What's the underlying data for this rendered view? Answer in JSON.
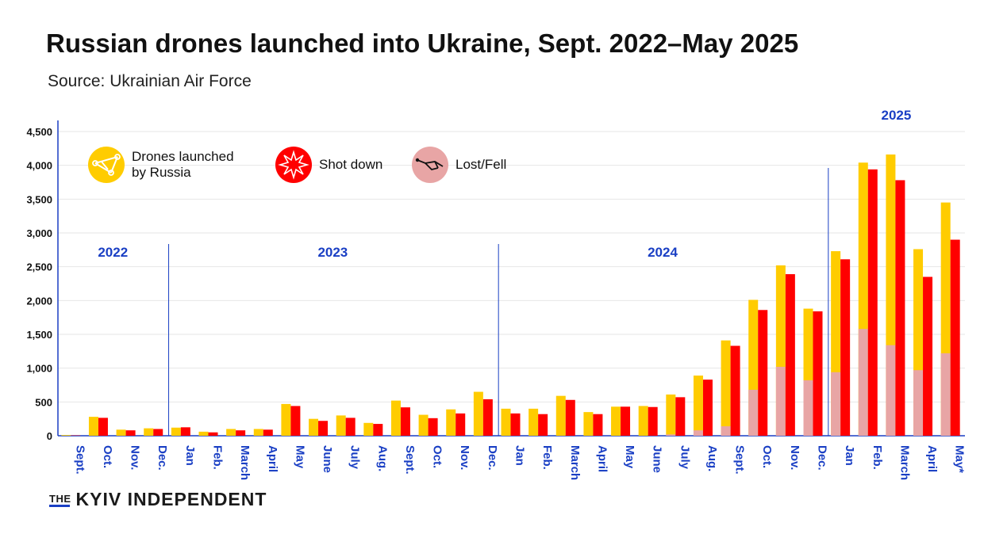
{
  "header": {
    "title": "Russian drones launched into Ukraine, Sept. 2022–May 2025",
    "subtitle": "Source: Ukrainian Air Force"
  },
  "brand": {
    "the": "THE",
    "name": "KYIV INDEPENDENT"
  },
  "legend": {
    "launched": "Drones launched by Russia",
    "launched_line1": "Drones launched",
    "launched_line2": "by Russia",
    "shot": "Shot down",
    "lost": "Lost/Fell"
  },
  "colors": {
    "launched": "#FFCC00",
    "shot_down": "#FF0000",
    "lost": "#E8A5A5",
    "axis": "#1a3fc4",
    "tick_text": "#111111",
    "grid": "#e6e6e6"
  },
  "chart_data": {
    "type": "bar",
    "ylim": [
      0,
      4500
    ],
    "yticks": [
      "0",
      "500",
      "1,000",
      "1,500",
      "2,000",
      "2,500",
      "3,000",
      "3,500",
      "4,000",
      "4,500"
    ],
    "ytick_values": [
      0,
      500,
      1000,
      1500,
      2000,
      2500,
      3000,
      3500,
      4000,
      4500
    ],
    "grid": true,
    "legend_position": "top-left",
    "years": [
      {
        "label": "2022",
        "start": 0,
        "end": 3
      },
      {
        "label": "2023",
        "start": 4,
        "end": 15
      },
      {
        "label": "2024",
        "start": 16,
        "end": 27
      },
      {
        "label": "2025",
        "start": 28,
        "end": 32
      }
    ],
    "categories": [
      "Sept.",
      "Oct.",
      "Nov.",
      "Dec.",
      "Jan",
      "Feb.",
      "March",
      "April",
      "May",
      "June",
      "July",
      "Aug.",
      "Sept.",
      "Oct.",
      "Nov.",
      "Dec.",
      "Jan",
      "Feb.",
      "March",
      "April",
      "May",
      "June",
      "July",
      "Aug.",
      "Sept.",
      "Oct.",
      "Nov.",
      "Dec.",
      "Jan",
      "Feb.",
      "March",
      "April",
      "May*"
    ],
    "series": [
      {
        "name": "Drones launched by Russia",
        "values": [
          10,
          280,
          90,
          110,
          120,
          60,
          100,
          100,
          470,
          250,
          300,
          190,
          520,
          310,
          390,
          650,
          400,
          400,
          590,
          350,
          430,
          440,
          610,
          890,
          1410,
          2010,
          2520,
          1880,
          2730,
          4040,
          4160,
          2760,
          3450
        ]
      },
      {
        "name": "Shot down",
        "values": [
          5,
          265,
          80,
          100,
          125,
          50,
          80,
          90,
          440,
          220,
          265,
          175,
          420,
          260,
          330,
          540,
          330,
          320,
          530,
          320,
          430,
          425,
          570,
          830,
          1330,
          1860,
          2390,
          1840,
          2610,
          3940,
          3780,
          2350,
          2900
        ]
      },
      {
        "name": "Lost/Fell",
        "values": [
          0,
          0,
          0,
          0,
          0,
          0,
          0,
          0,
          0,
          0,
          0,
          0,
          0,
          0,
          0,
          0,
          0,
          0,
          0,
          0,
          0,
          0,
          20,
          80,
          140,
          680,
          1020,
          820,
          940,
          1580,
          1340,
          970,
          1220
        ]
      }
    ]
  }
}
